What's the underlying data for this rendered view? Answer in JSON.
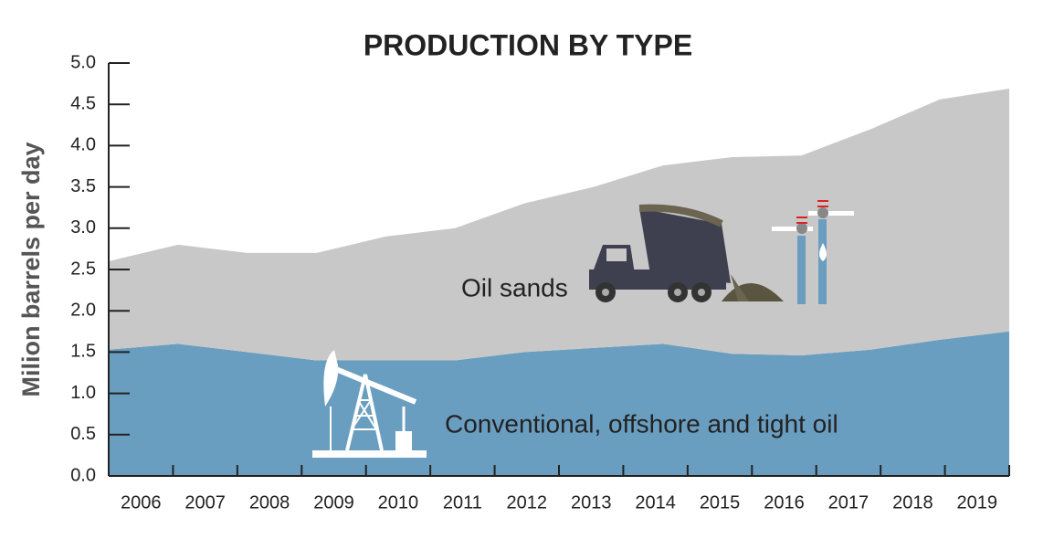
{
  "chart_data": {
    "type": "stacked-area",
    "title": "PRODUCTION BY TYPE",
    "y_label": "Milion barrels per day",
    "categories": [
      "2006",
      "2007",
      "2008",
      "2009",
      "2010",
      "2011",
      "2012",
      "2013",
      "2014",
      "2015",
      "2016",
      "2017",
      "2018",
      "2019"
    ],
    "series": [
      {
        "name": "Conventional, offshore and tight oil",
        "color": "#6a9ec0",
        "values": [
          1.53,
          1.6,
          1.5,
          1.4,
          1.4,
          1.4,
          1.5,
          1.55,
          1.6,
          1.48,
          1.46,
          1.53,
          1.65,
          1.75
        ]
      },
      {
        "name": "Oil sands",
        "color": "#c8c8c8",
        "values": [
          1.07,
          1.2,
          1.2,
          1.3,
          1.5,
          1.6,
          1.8,
          1.95,
          2.16,
          2.38,
          2.42,
          2.67,
          2.91,
          2.94
        ]
      }
    ],
    "ylim": [
      0,
      5
    ],
    "yticks": [
      {
        "value": 0,
        "label": "0.0"
      },
      {
        "value": 0.5,
        "label": "0.5"
      },
      {
        "value": 1,
        "label": "1.0"
      },
      {
        "value": 1.5,
        "label": "1.5"
      },
      {
        "value": 2,
        "label": "2.0"
      },
      {
        "value": 2.5,
        "label": "2.5"
      },
      {
        "value": 3,
        "label": "3.0"
      },
      {
        "value": 3.5,
        "label": "3.5"
      },
      {
        "value": 4,
        "label": "4.0"
      },
      {
        "value": 4.5,
        "label": "4.5"
      },
      {
        "value": 5,
        "label": "5.0"
      }
    ]
  }
}
